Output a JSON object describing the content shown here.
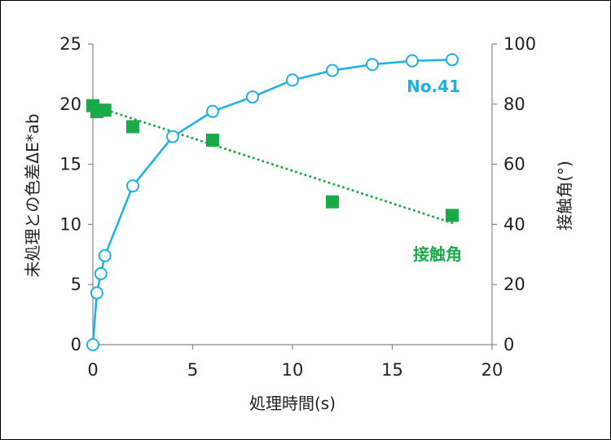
{
  "chart_data": {
    "type": "scatter",
    "title": "",
    "xlabel": "処理時間(s)",
    "ylabel": "未処理との色差ΔE*ab",
    "y2label": "接触角(°)",
    "xlim": [
      0,
      20
    ],
    "ylim": [
      0,
      25
    ],
    "y2lim": [
      0,
      100
    ],
    "xticks": [
      "0",
      "5",
      "10",
      "15",
      "20"
    ],
    "yticks": [
      "0",
      "5",
      "10",
      "15",
      "20",
      "25"
    ],
    "y2ticks": [
      "0",
      "20",
      "40",
      "60",
      "80",
      "100"
    ],
    "grid": false,
    "series": [
      {
        "name": "No.41",
        "axis": "left",
        "style": "line-open-circle",
        "color": "#1ab0e8",
        "x": [
          0,
          0.2,
          0.4,
          0.6,
          2,
          4,
          6,
          8,
          10,
          12,
          14,
          16,
          18
        ],
        "y": [
          0,
          4.3,
          5.9,
          7.4,
          13.2,
          17.3,
          19.4,
          20.6,
          22.0,
          22.8,
          23.3,
          23.6,
          23.7
        ]
      },
      {
        "name": "接触角",
        "axis": "right",
        "style": "filled-square",
        "color": "#1aaa4a",
        "x": [
          0,
          0.2,
          0.6,
          2,
          6,
          12,
          18
        ],
        "y": [
          79.5,
          77.5,
          78.0,
          72.5,
          68.0,
          47.5,
          43.0
        ]
      }
    ],
    "trendline": {
      "series": "接触角",
      "style": "dotted",
      "color": "#1aaa4a",
      "x": [
        0,
        18
      ],
      "y": [
        79.5,
        40.5
      ]
    }
  }
}
